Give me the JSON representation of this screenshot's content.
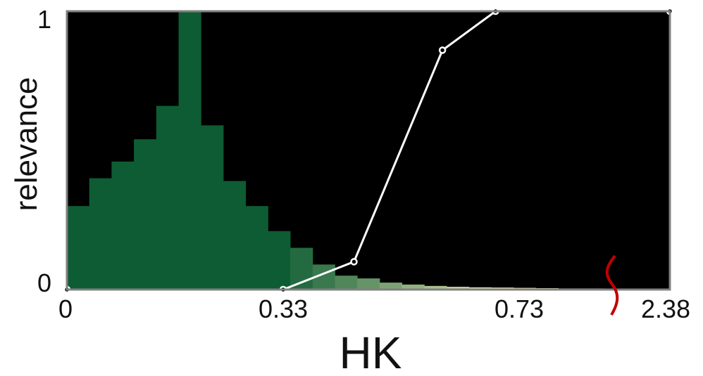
{
  "chart_data": {
    "type": "bar",
    "xlabel": "HK",
    "ylabel": "relevance",
    "x_tick_labels": [
      "0",
      "0.33",
      "0.73",
      "2.38"
    ],
    "y_tick_labels": [
      "0",
      "1"
    ],
    "ylim": [
      0,
      1
    ],
    "axis_break_between": [
      "0.73",
      "2.38"
    ],
    "colors": {
      "plot_background": "#000000",
      "frame": "#808080",
      "bar_low": "#0e5c33",
      "bar_high": "#ece9b5",
      "line": "#ffffff",
      "axis_break": "#c00000"
    },
    "histogram": {
      "bin_count": 27,
      "values": [
        0.3,
        0.4,
        0.46,
        0.54,
        0.66,
        1.0,
        0.59,
        0.39,
        0.3,
        0.21,
        0.15,
        0.09,
        0.05,
        0.04,
        0.025,
        0.018,
        0.013,
        0.01,
        0.008,
        0.007,
        0.006,
        0.005,
        0.004,
        0.004,
        0.003,
        0.003,
        0.002
      ]
    },
    "series": [
      {
        "type": "line",
        "points": [
          {
            "x": 0.0,
            "y": 0.0
          },
          {
            "x": 0.33,
            "y": 0.0
          },
          {
            "x": 0.45,
            "y": 0.1
          },
          {
            "x": 0.6,
            "y": 0.86
          },
          {
            "x": 0.69,
            "y": 1.0
          },
          {
            "x": 2.38,
            "y": 1.0
          }
        ]
      }
    ]
  }
}
